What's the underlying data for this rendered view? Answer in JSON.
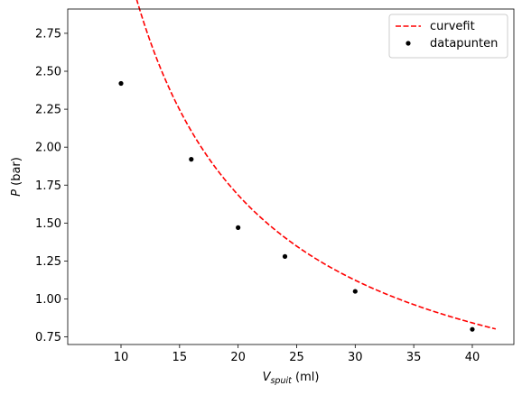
{
  "chart_data": {
    "type": "scatter",
    "xlim": [
      5.45,
      43.55
    ],
    "ylim": [
      0.7,
      2.91
    ],
    "xticks": [
      10,
      15,
      20,
      25,
      30,
      35,
      40
    ],
    "yticks": [
      0.75,
      1.0,
      1.25,
      1.5,
      1.75,
      2.0,
      2.25,
      2.5,
      2.75
    ],
    "xlabel": {
      "main": "V",
      "sub": "spuit",
      "unit": " (ml)"
    },
    "ylabel": {
      "main": "P",
      "unit": " (bar)"
    },
    "grid": false,
    "legend_position": "top-right",
    "series": [
      {
        "name": "curvefit",
        "kind": "line",
        "style": "dashed",
        "color": "#ff0000",
        "model": {
          "form": "a / x",
          "a": 33.7,
          "x_range": [
            8,
            42
          ]
        }
      },
      {
        "name": "datapunten",
        "kind": "points",
        "color": "#000000",
        "x": [
          10,
          16,
          20,
          24,
          30,
          40
        ],
        "y": [
          2.42,
          1.92,
          1.47,
          1.28,
          1.05,
          0.8
        ]
      }
    ]
  }
}
